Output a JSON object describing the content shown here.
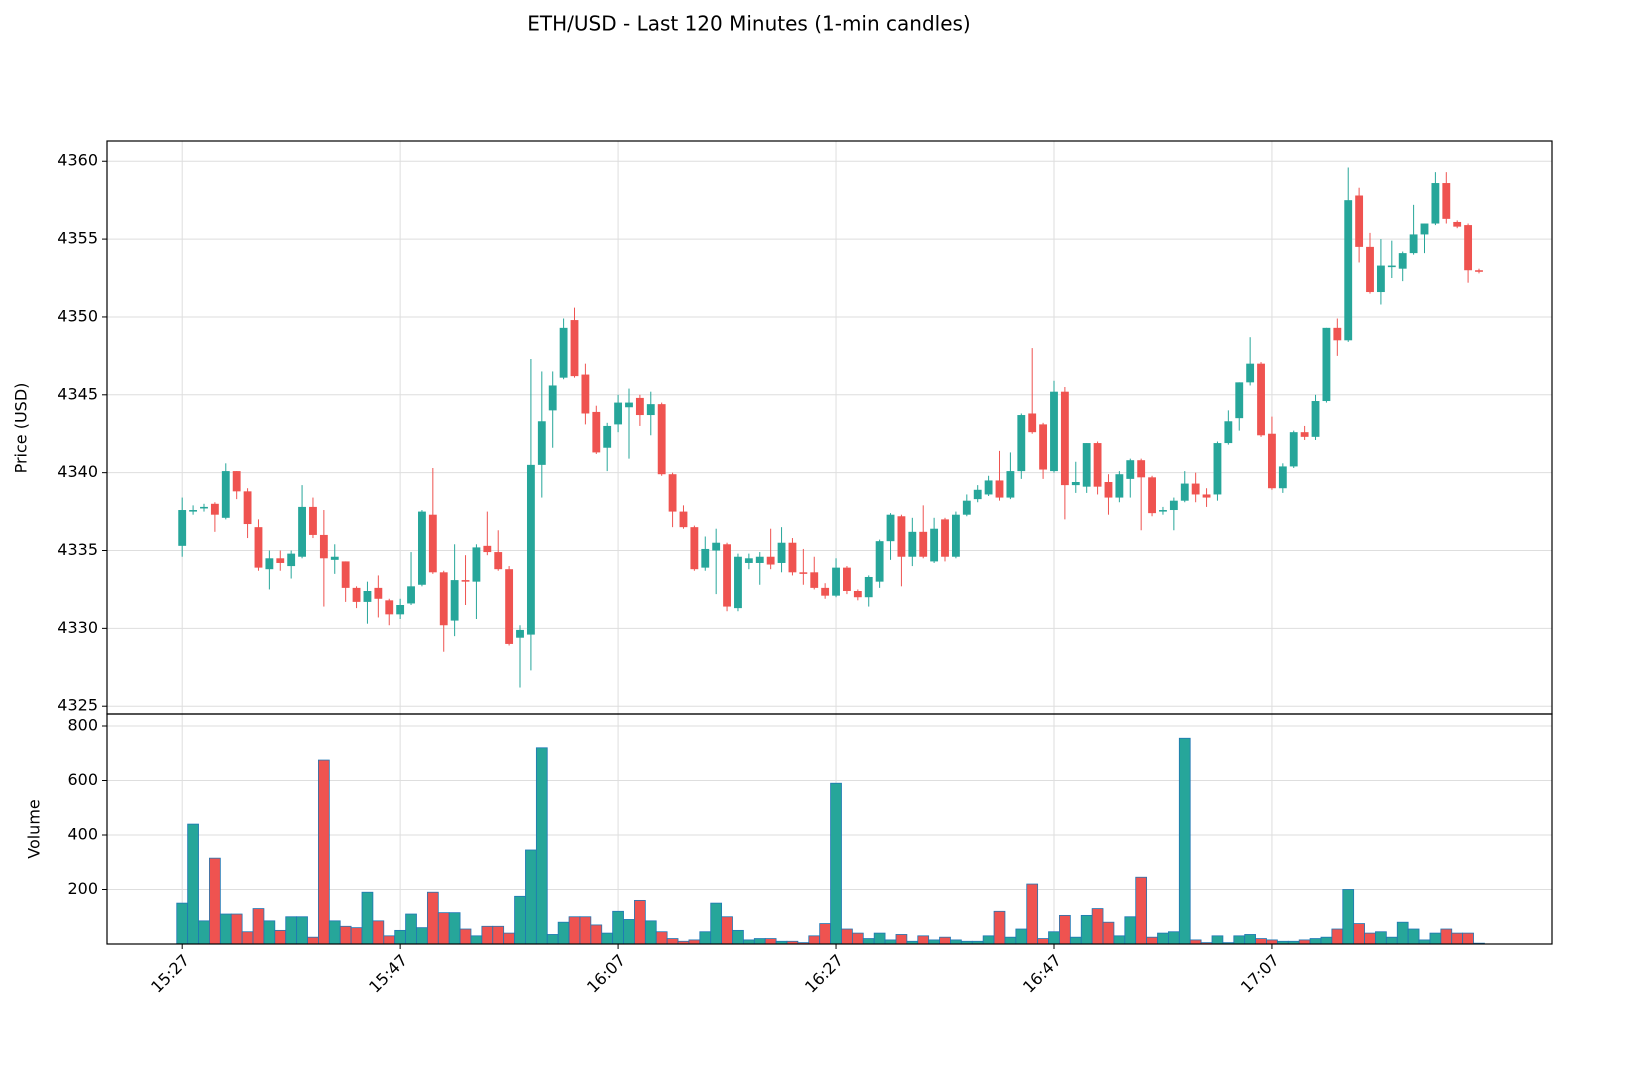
{
  "chart_data": {
    "type": "candlestick",
    "title": "ETH/USD - Last 120 Minutes (1-min candles)",
    "grid": true,
    "up_color": "#26a69a",
    "down_color": "#ef5350",
    "volume_edge_color": "#1f77b4",
    "xlim": [
      -6.9,
      125.7
    ],
    "xticks": [
      {
        "value": 0,
        "label": "15:27"
      },
      {
        "value": 20,
        "label": "15:47"
      },
      {
        "value": 40,
        "label": "16:07"
      },
      {
        "value": 60,
        "label": "16:27"
      },
      {
        "value": 80,
        "label": "16:47"
      },
      {
        "value": 100,
        "label": "17:07"
      }
    ],
    "price": {
      "y_label": "Price (USD)",
      "ylim": [
        4324.5,
        4361.3
      ],
      "yticks": [
        4325,
        4330,
        4335,
        4340,
        4345,
        4350,
        4355,
        4360
      ]
    },
    "volume_panel": {
      "y_label": "Volume",
      "ylim": [
        0,
        844
      ],
      "yticks": [
        200,
        400,
        600,
        800
      ]
    },
    "open": [
      4335.3,
      4337.5,
      4337.7,
      4338.0,
      4337.1,
      4340.1,
      4338.8,
      4336.5,
      4333.8,
      4334.5,
      4334.0,
      4334.6,
      4337.8,
      4336.0,
      4334.4,
      4334.3,
      4332.6,
      4331.7,
      4332.6,
      4331.8,
      4330.9,
      4331.6,
      4332.8,
      4337.3,
      4333.6,
      4330.5,
      4333.1,
      4333.0,
      4335.3,
      4334.9,
      4333.8,
      4329.4,
      4329.6,
      4340.5,
      4344.0,
      4346.1,
      4349.8,
      4346.3,
      4343.9,
      4341.6,
      4343.1,
      4344.2,
      4344.8,
      4343.7,
      4344.4,
      4339.9,
      4337.5,
      4336.5,
      4333.9,
      4335.0,
      4335.4,
      4331.3,
      4334.2,
      4334.2,
      4334.6,
      4334.2,
      4335.5,
      4333.6,
      4333.6,
      4332.6,
      4332.1,
      4333.9,
      4332.4,
      4332.0,
      4333.0,
      4335.6,
      4337.2,
      4334.6,
      4336.2,
      4334.3,
      4337.0,
      4334.6,
      4337.3,
      4338.3,
      4338.6,
      4339.5,
      4338.4,
      4340.1,
      4343.8,
      4343.1,
      4340.1,
      4345.2,
      4339.2,
      4339.1,
      4341.9,
      4339.4,
      4338.4,
      4339.6,
      4340.8,
      4339.7,
      4337.5,
      4337.6,
      4338.2,
      4339.3,
      4338.6,
      4338.6,
      4341.9,
      4343.5,
      4345.8,
      4347.0,
      4342.5,
      4339.0,
      4340.4,
      4342.6,
      4342.3,
      4344.6,
      4349.3,
      4348.5,
      4357.8,
      4354.5,
      4351.6,
      4353.2,
      4353.1,
      4354.1,
      4355.3,
      4356.0,
      4358.6,
      4356.1,
      4355.9,
      4353.0
    ],
    "high": [
      4338.4,
      4337.9,
      4338.0,
      4338.1,
      4340.6,
      4340.1,
      4339.0,
      4337.0,
      4335.0,
      4335.0,
      4335.0,
      4339.2,
      4338.4,
      4337.6,
      4335.4,
      4334.3,
      4332.7,
      4333.0,
      4333.4,
      4331.9,
      4331.9,
      4334.9,
      4337.6,
      4340.3,
      4333.7,
      4335.4,
      4334.7,
      4335.4,
      4337.5,
      4336.3,
      4334.0,
      4330.2,
      4347.3,
      4346.5,
      4346.5,
      4349.9,
      4350.6,
      4347.0,
      4344.3,
      4343.2,
      4345.0,
      4345.4,
      4345.0,
      4345.2,
      4344.5,
      4340.0,
      4337.9,
      4336.6,
      4335.9,
      4336.4,
      4335.5,
      4334.8,
      4334.8,
      4334.9,
      4336.4,
      4336.5,
      4335.8,
      4335.1,
      4334.6,
      4332.9,
      4334.5,
      4334.0,
      4332.5,
      4333.4,
      4335.7,
      4337.4,
      4337.3,
      4337.1,
      4337.9,
      4337.1,
      4337.1,
      4337.5,
      4338.6,
      4339.2,
      4339.8,
      4341.4,
      4341.3,
      4343.8,
      4348.0,
      4343.2,
      4345.9,
      4345.5,
      4340.7,
      4341.9,
      4342.0,
      4339.9,
      4340.1,
      4340.9,
      4340.9,
      4339.8,
      4337.8,
      4338.4,
      4340.1,
      4340.0,
      4339.0,
      4342.0,
      4344.0,
      4345.8,
      4348.7,
      4347.1,
      4343.6,
      4340.6,
      4342.7,
      4343.0,
      4345.0,
      4349.3,
      4349.9,
      4359.6,
      4358.3,
      4355.4,
      4355.0,
      4354.9,
      4354.2,
      4357.2,
      4356.0,
      4359.3,
      4359.3,
      4356.2,
      4356.0,
      4353.1
    ],
    "low": [
      4334.6,
      4337.3,
      4337.5,
      4336.2,
      4337.0,
      4338.3,
      4335.8,
      4333.7,
      4332.5,
      4333.7,
      4333.2,
      4334.5,
      4335.8,
      4331.4,
      4333.5,
      4331.7,
      4331.3,
      4330.3,
      4330.7,
      4330.2,
      4330.6,
      4331.5,
      4332.7,
      4333.5,
      4328.5,
      4329.5,
      4331.5,
      4330.6,
      4334.7,
      4333.7,
      4328.9,
      4326.2,
      4327.3,
      4338.4,
      4341.6,
      4346.0,
      4346.1,
      4343.1,
      4341.2,
      4340.1,
      4342.6,
      4340.9,
      4343.0,
      4342.4,
      4339.8,
      4336.5,
      4336.4,
      4333.7,
      4333.7,
      4332.2,
      4331.1,
      4331.1,
      4333.8,
      4332.8,
      4333.8,
      4333.6,
      4333.4,
      4332.8,
      4332.5,
      4331.9,
      4332.0,
      4332.2,
      4331.8,
      4331.4,
      4332.6,
      4334.4,
      4332.7,
      4334.0,
      4334.5,
      4334.2,
      4334.3,
      4334.5,
      4337.2,
      4338.1,
      4338.5,
      4338.2,
      4338.3,
      4339.6,
      4342.5,
      4339.6,
      4340.0,
      4337.0,
      4338.7,
      4338.7,
      4338.6,
      4337.3,
      4338.1,
      4338.4,
      4336.3,
      4337.2,
      4337.3,
      4336.3,
      4338.1,
      4338.1,
      4337.8,
      4338.2,
      4341.8,
      4342.7,
      4345.6,
      4342.3,
      4338.9,
      4338.7,
      4340.3,
      4342.1,
      4342.1,
      4344.5,
      4347.5,
      4348.4,
      4353.5,
      4351.5,
      4350.8,
      4352.5,
      4352.3,
      4354.0,
      4354.1,
      4355.9,
      4356.0,
      4355.7,
      4352.2,
      4352.8
    ],
    "close": [
      4337.6,
      4337.6,
      4337.8,
      4337.3,
      4340.1,
      4338.8,
      4336.7,
      4333.9,
      4334.5,
      4334.2,
      4334.8,
      4337.8,
      4336.0,
      4334.5,
      4334.6,
      4332.6,
      4331.7,
      4332.4,
      4331.9,
      4330.9,
      4331.5,
      4332.7,
      4337.5,
      4333.6,
      4330.2,
      4333.1,
      4333.0,
      4335.2,
      4334.9,
      4333.8,
      4329.0,
      4329.9,
      4340.5,
      4343.3,
      4345.6,
      4349.3,
      4346.2,
      4343.8,
      4341.3,
      4343.0,
      4344.5,
      4344.5,
      4343.7,
      4344.4,
      4339.9,
      4337.5,
      4336.5,
      4333.8,
      4335.1,
      4335.5,
      4331.4,
      4334.6,
      4334.5,
      4334.6,
      4334.1,
      4335.5,
      4333.6,
      4333.5,
      4332.6,
      4332.1,
      4333.9,
      4332.4,
      4332.0,
      4333.3,
      4335.6,
      4337.3,
      4334.6,
      4336.2,
      4334.6,
      4336.4,
      4334.6,
      4337.3,
      4338.2,
      4338.9,
      4339.5,
      4338.4,
      4340.1,
      4343.7,
      4342.6,
      4340.2,
      4345.2,
      4339.2,
      4339.4,
      4341.9,
      4339.1,
      4338.4,
      4339.9,
      4340.8,
      4339.7,
      4337.4,
      4337.6,
      4338.2,
      4339.3,
      4338.6,
      4338.4,
      4341.9,
      4343.3,
      4345.8,
      4347.0,
      4342.4,
      4339.0,
      4340.4,
      4342.6,
      4342.3,
      4344.6,
      4349.3,
      4348.5,
      4357.5,
      4354.5,
      4351.6,
      4353.3,
      4353.3,
      4354.1,
      4355.3,
      4356.0,
      4358.6,
      4356.3,
      4355.8,
      4353.0,
      4352.9
    ],
    "volume": [
      150,
      440,
      85,
      315,
      110,
      110,
      45,
      130,
      85,
      50,
      100,
      100,
      25,
      675,
      85,
      65,
      60,
      190,
      85,
      30,
      50,
      110,
      60,
      190,
      115,
      115,
      55,
      30,
      65,
      65,
      40,
      175,
      345,
      720,
      35,
      80,
      100,
      100,
      70,
      40,
      120,
      90,
      160,
      85,
      45,
      20,
      10,
      15,
      45,
      150,
      100,
      50,
      15,
      20,
      20,
      10,
      10,
      5,
      30,
      75,
      590,
      55,
      40,
      20,
      40,
      15,
      35,
      10,
      30,
      15,
      25,
      15,
      10,
      10,
      30,
      120,
      25,
      55,
      220,
      20,
      45,
      105,
      25,
      105,
      130,
      80,
      30,
      100,
      245,
      25,
      40,
      45,
      755,
      15,
      5,
      30,
      5,
      30,
      35,
      20,
      15,
      10,
      10,
      15,
      20,
      25,
      55,
      200,
      75,
      40,
      45,
      25,
      80,
      55,
      15,
      40,
      55,
      40,
      40,
      3
    ]
  }
}
